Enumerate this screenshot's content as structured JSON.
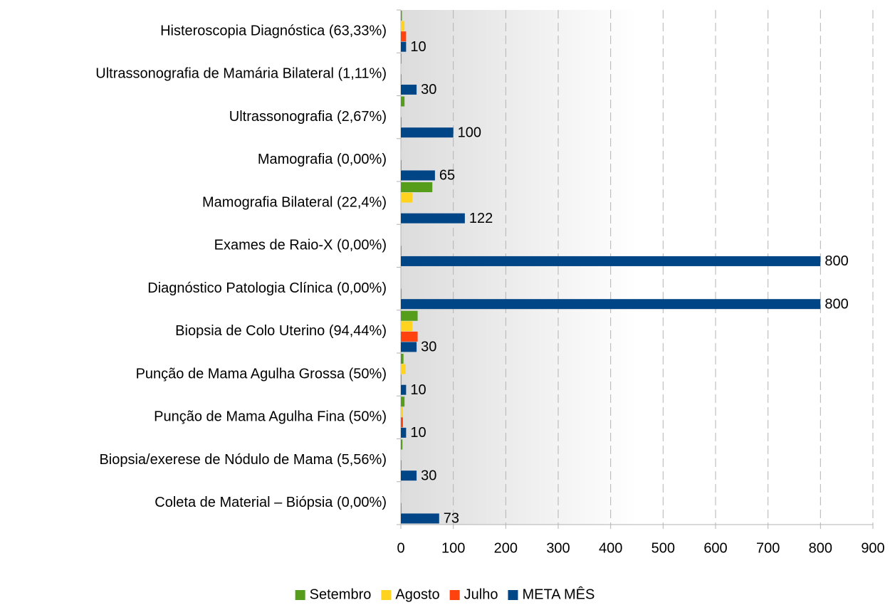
{
  "chart_data": {
    "type": "hbar",
    "categories": [
      "Histeroscopia Diagnóstica (63,33%)",
      "Ultrassonografia de Mamária Bilateral (1,11%)",
      "Ultrassonografia (2,67%)",
      "Mamografia (0,00%)",
      "Mamografia Bilateral (22,4%)",
      "Exames de Raio-X (0,00%)",
      "Diagnóstico Patologia Clínica (0,00%)",
      "Biopsia de Colo Uterino (94,44%)",
      "Punção de Mama Agulha Grossa (50%)",
      "Punção de Mama Agulha Fina (50%)",
      "Biopsia/exerese de Nódulo de Mama (5,56%)",
      "Coleta de Material – Biópsia (0,00%)"
    ],
    "series": [
      {
        "name": "Setembro",
        "color": "#579d1c",
        "values": [
          2,
          1,
          7,
          0,
          60,
          0,
          0,
          32,
          5,
          7,
          3,
          0
        ]
      },
      {
        "name": "Agosto",
        "color": "#ffd320",
        "values": [
          7,
          1,
          1,
          1,
          22,
          0,
          0,
          22,
          9,
          4,
          1,
          1
        ]
      },
      {
        "name": "Julho",
        "color": "#ff420e",
        "values": [
          10,
          1,
          1,
          1,
          0,
          1,
          1,
          32,
          1,
          4,
          1,
          1
        ]
      },
      {
        "name": "META MÊS",
        "color": "#004586",
        "values": [
          10,
          30,
          100,
          65,
          122,
          800,
          800,
          30,
          10,
          10,
          30,
          73
        ],
        "show_labels": true
      }
    ],
    "xlim": [
      0,
      900
    ],
    "xticks": [
      0,
      100,
      200,
      300,
      400,
      500,
      600,
      700,
      800,
      900
    ],
    "grid": true,
    "legend": "bottom"
  }
}
